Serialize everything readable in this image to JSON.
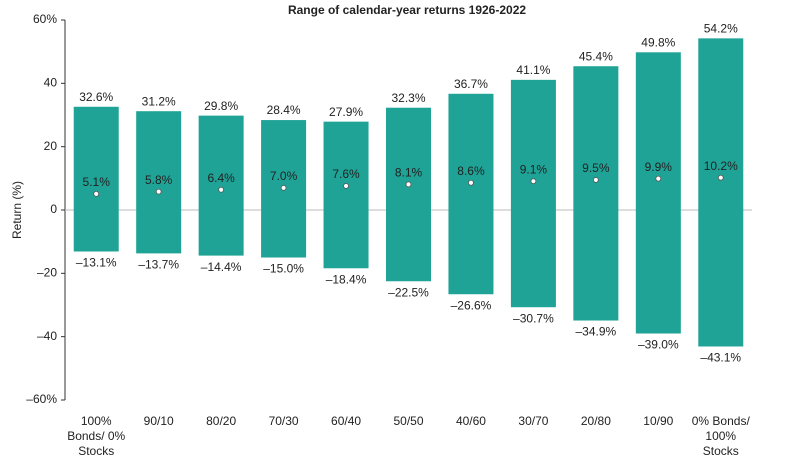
{
  "chart_data": {
    "type": "range-bar",
    "title": "Range of calendar-year returns 1926-2022",
    "y_label": "Return (%)",
    "categories": [
      "100% Bonds/ 0% Stocks",
      "90/10",
      "80/20",
      "70/30",
      "60/40",
      "50/50",
      "40/60",
      "30/70",
      "20/80",
      "10/90",
      "0% Bonds/ 100% Stocks"
    ],
    "color": "#1fa396",
    "series": [
      {
        "values": [
          32.6,
          31.2,
          29.8,
          28.4,
          27.9,
          32.3,
          36.7,
          41.1,
          45.4,
          49.8,
          54.2
        ],
        "value_labels": [
          "32.6%",
          "31.2%",
          "29.8%",
          "28.4%",
          "27.9%",
          "32.3%",
          "36.7%",
          "41.1%",
          "45.4%",
          "49.8%",
          "54.2%"
        ]
      },
      {
        "values": [
          -13.1,
          -13.7,
          -14.4,
          -15.0,
          -18.4,
          -22.5,
          -26.6,
          -30.7,
          -34.9,
          -39.0,
          -43.1
        ],
        "value_labels": [
          "–13.1%",
          "–13.7%",
          "–14.4%",
          "–15.0%",
          "–18.4%",
          "–22.5%",
          "–26.6%",
          "–30.7%",
          "–34.9%",
          "–39.0%",
          "–43.1%"
        ]
      },
      {
        "values": [
          5.1,
          5.8,
          6.4,
          7.0,
          7.6,
          8.1,
          8.6,
          9.1,
          9.5,
          9.9,
          10.2
        ],
        "value_labels": [
          "5.1%",
          "5.8%",
          "6.4%",
          "7.0%",
          "7.6%",
          "8.1%",
          "8.6%",
          "9.1%",
          "9.5%",
          "9.9%",
          "10.2%"
        ]
      }
    ],
    "ylim": [
      -60,
      60
    ],
    "yticks": [
      {
        "value": -60,
        "label": "–60%"
      },
      {
        "value": -40,
        "label": "–40"
      },
      {
        "value": -20,
        "label": "–20"
      },
      0,
      20,
      40,
      {
        "value": 60,
        "label": "60%"
      }
    ],
    "grid": false
  }
}
